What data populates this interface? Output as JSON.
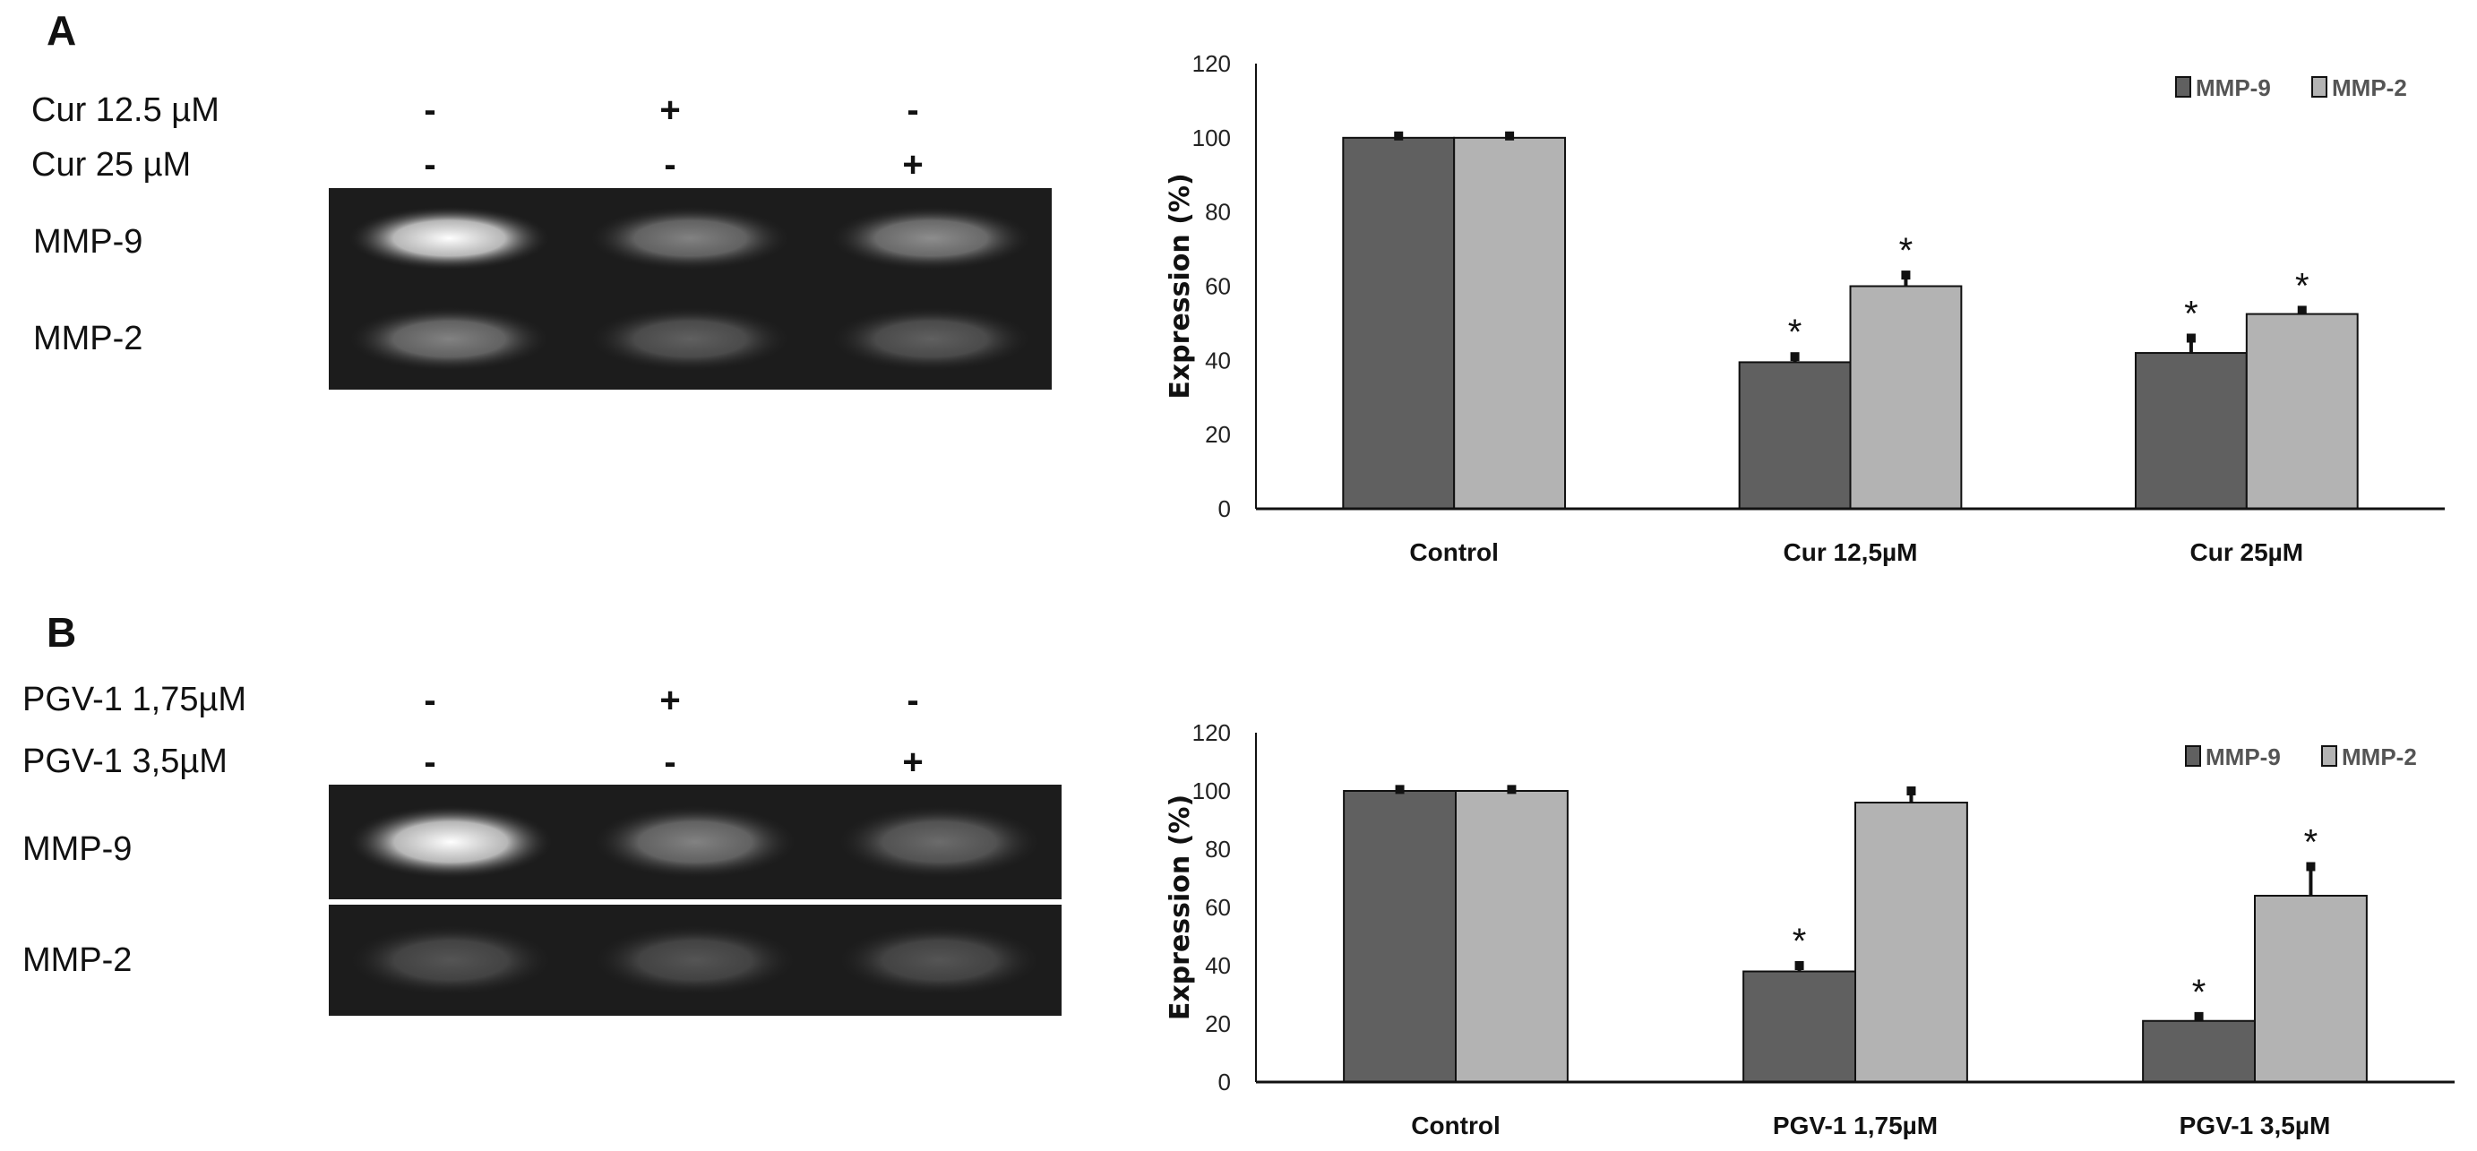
{
  "panels": [
    {
      "letter": "A",
      "treatments": [
        {
          "label": "Cur 12.5 µM",
          "signs": [
            "-",
            "+",
            "-"
          ]
        },
        {
          "label": "Cur 25 µM",
          "signs": [
            "-",
            "-",
            "+"
          ]
        }
      ],
      "gel_rows": [
        "MMP-9",
        "MMP-2"
      ],
      "band_intensity": {
        "MMP-9": [
          1.0,
          0.45,
          0.5
        ],
        "MMP-2": [
          0.45,
          0.3,
          0.3
        ]
      }
    },
    {
      "letter": "B",
      "treatments": [
        {
          "label": "PGV-1 1,75µM",
          "signs": [
            "-",
            "+",
            "-"
          ]
        },
        {
          "label": "PGV-1 3,5µM",
          "signs": [
            "-",
            "-",
            "+"
          ]
        }
      ],
      "gel_rows": [
        "MMP-9",
        "MMP-2"
      ],
      "band_intensity": {
        "MMP-9": [
          1.0,
          0.45,
          0.35
        ],
        "MMP-2": [
          0.25,
          0.25,
          0.25
        ]
      }
    }
  ],
  "colors": {
    "MMP-9": "#606060",
    "MMP-2": "#b3b3b3"
  },
  "chart_data": [
    {
      "type": "bar",
      "title": "",
      "xlabel": "",
      "ylabel": "Expression (%)",
      "ylim": [
        0,
        120
      ],
      "yticks": [
        "0",
        "20",
        "40",
        "60",
        "80",
        "100",
        "120"
      ],
      "categories": [
        "Control",
        "Cur 12,5µM",
        "Cur 25µM"
      ],
      "legend_position": "top-right",
      "series": [
        {
          "name": "MMP-9",
          "values": [
            100,
            39.5,
            42
          ],
          "errors": [
            0.5,
            1.5,
            4
          ],
          "significant": [
            false,
            true,
            true
          ]
        },
        {
          "name": "MMP-2",
          "values": [
            100,
            60,
            52.5
          ],
          "errors": [
            0.5,
            3,
            1
          ],
          "significant": [
            false,
            true,
            true
          ]
        }
      ],
      "marker": "*"
    },
    {
      "type": "bar",
      "title": "",
      "xlabel": "",
      "ylabel": "Expression (%)",
      "ylim": [
        0,
        120
      ],
      "yticks": [
        "0",
        "20",
        "40",
        "60",
        "80",
        "100",
        "120"
      ],
      "categories": [
        "Control",
        "PGV-1 1,75µM",
        "PGV-1 3,5µM"
      ],
      "legend_position": "top-right",
      "series": [
        {
          "name": "MMP-9",
          "values": [
            100,
            38,
            21
          ],
          "errors": [
            0.5,
            2,
            1.5
          ],
          "significant": [
            false,
            true,
            true
          ]
        },
        {
          "name": "MMP-2",
          "values": [
            100,
            96,
            64
          ],
          "errors": [
            0.5,
            4,
            10
          ],
          "significant": [
            false,
            false,
            true
          ]
        }
      ],
      "marker": "*"
    }
  ]
}
